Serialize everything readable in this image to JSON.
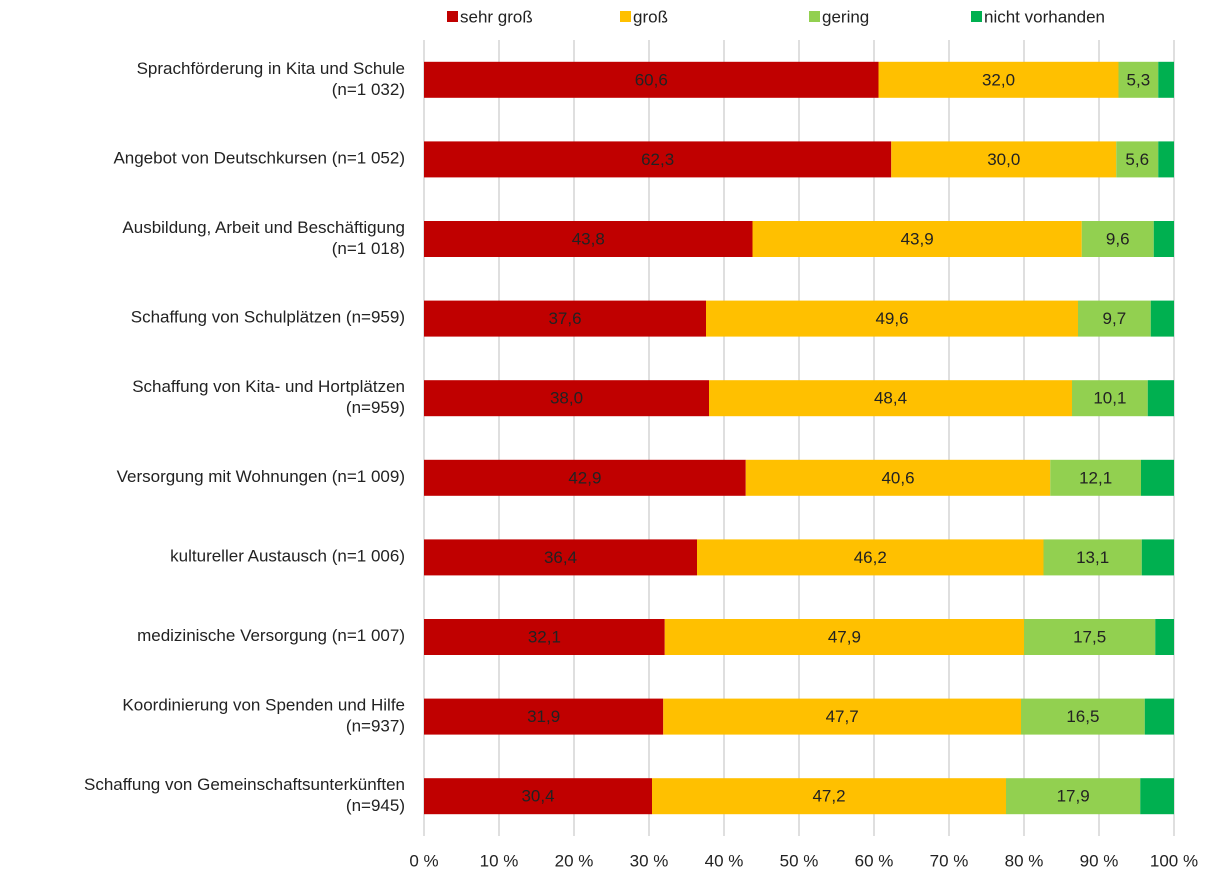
{
  "chart_data": {
    "type": "stacked-barh",
    "categories": [
      [
        "Sprachförderung in Kita und Schule",
        "(n=1 032)"
      ],
      [
        "Angebot von Deutschkursen (n=1 052)"
      ],
      [
        "Ausbildung, Arbeit und Beschäftigung",
        "(n=1 018)"
      ],
      [
        "Schaffung von Schulplätzen (n=959)"
      ],
      [
        "Schaffung von Kita- und Hortplätzen",
        "(n=959)"
      ],
      [
        "Versorgung mit Wohnungen (n=1 009)"
      ],
      [
        "kultureller Austausch (n=1 006)"
      ],
      [
        "medizinische Versorgung (n=1 007)"
      ],
      [
        "Koordinierung von Spenden und Hilfe",
        "(n=937)"
      ],
      [
        "Schaffung von Gemeinschaftsunterkünften",
        "(n=945)"
      ]
    ],
    "series": [
      {
        "name": "sehr groß",
        "color": "#c00000",
        "values": [
          60.6,
          62.3,
          43.8,
          37.6,
          38.0,
          42.9,
          36.4,
          32.1,
          31.9,
          30.4
        ],
        "value_labels": [
          "60,6",
          "62,3",
          "43,8",
          "37,6",
          "38,0",
          "42,9",
          "36,4",
          "32,1",
          "31,9",
          "30,4"
        ]
      },
      {
        "name": "groß",
        "color": "#ffc000",
        "values": [
          32.0,
          30.0,
          43.9,
          49.6,
          48.4,
          40.6,
          46.2,
          47.9,
          47.7,
          47.2
        ],
        "value_labels": [
          "32,0",
          "30,0",
          "43,9",
          "49,6",
          "48,4",
          "40,6",
          "46,2",
          "47,9",
          "47,7",
          "47,2"
        ]
      },
      {
        "name": "gering",
        "color": "#92d050",
        "values": [
          5.3,
          5.6,
          9.6,
          9.7,
          10.1,
          12.1,
          13.1,
          17.5,
          16.5,
          17.9
        ],
        "value_labels": [
          "5,3",
          "5,6",
          "9,6",
          "9,7",
          "10,1",
          "12,1",
          "13,1",
          "17,5",
          "16,5",
          "17,9"
        ]
      },
      {
        "name": "nicht vorhanden",
        "color": "#00b050",
        "values": [
          2.1,
          2.1,
          2.7,
          3.1,
          3.5,
          4.4,
          4.3,
          2.5,
          3.9,
          4.5
        ]
      }
    ],
    "xlim": [
      0,
      100
    ],
    "xticks": [
      {
        "value": 0,
        "label": "0 %"
      },
      {
        "value": 10,
        "label": "10 %"
      },
      {
        "value": 20,
        "label": "20 %"
      },
      {
        "value": 30,
        "label": "30 %"
      },
      {
        "value": 40,
        "label": "40 %"
      },
      {
        "value": 50,
        "label": "50 %"
      },
      {
        "value": 60,
        "label": "60 %"
      },
      {
        "value": 70,
        "label": "70 %"
      },
      {
        "value": 80,
        "label": "80 %"
      },
      {
        "value": 90,
        "label": "90 %"
      },
      {
        "value": 100,
        "label": "100 %"
      }
    ],
    "grid": true,
    "legend": "top"
  }
}
